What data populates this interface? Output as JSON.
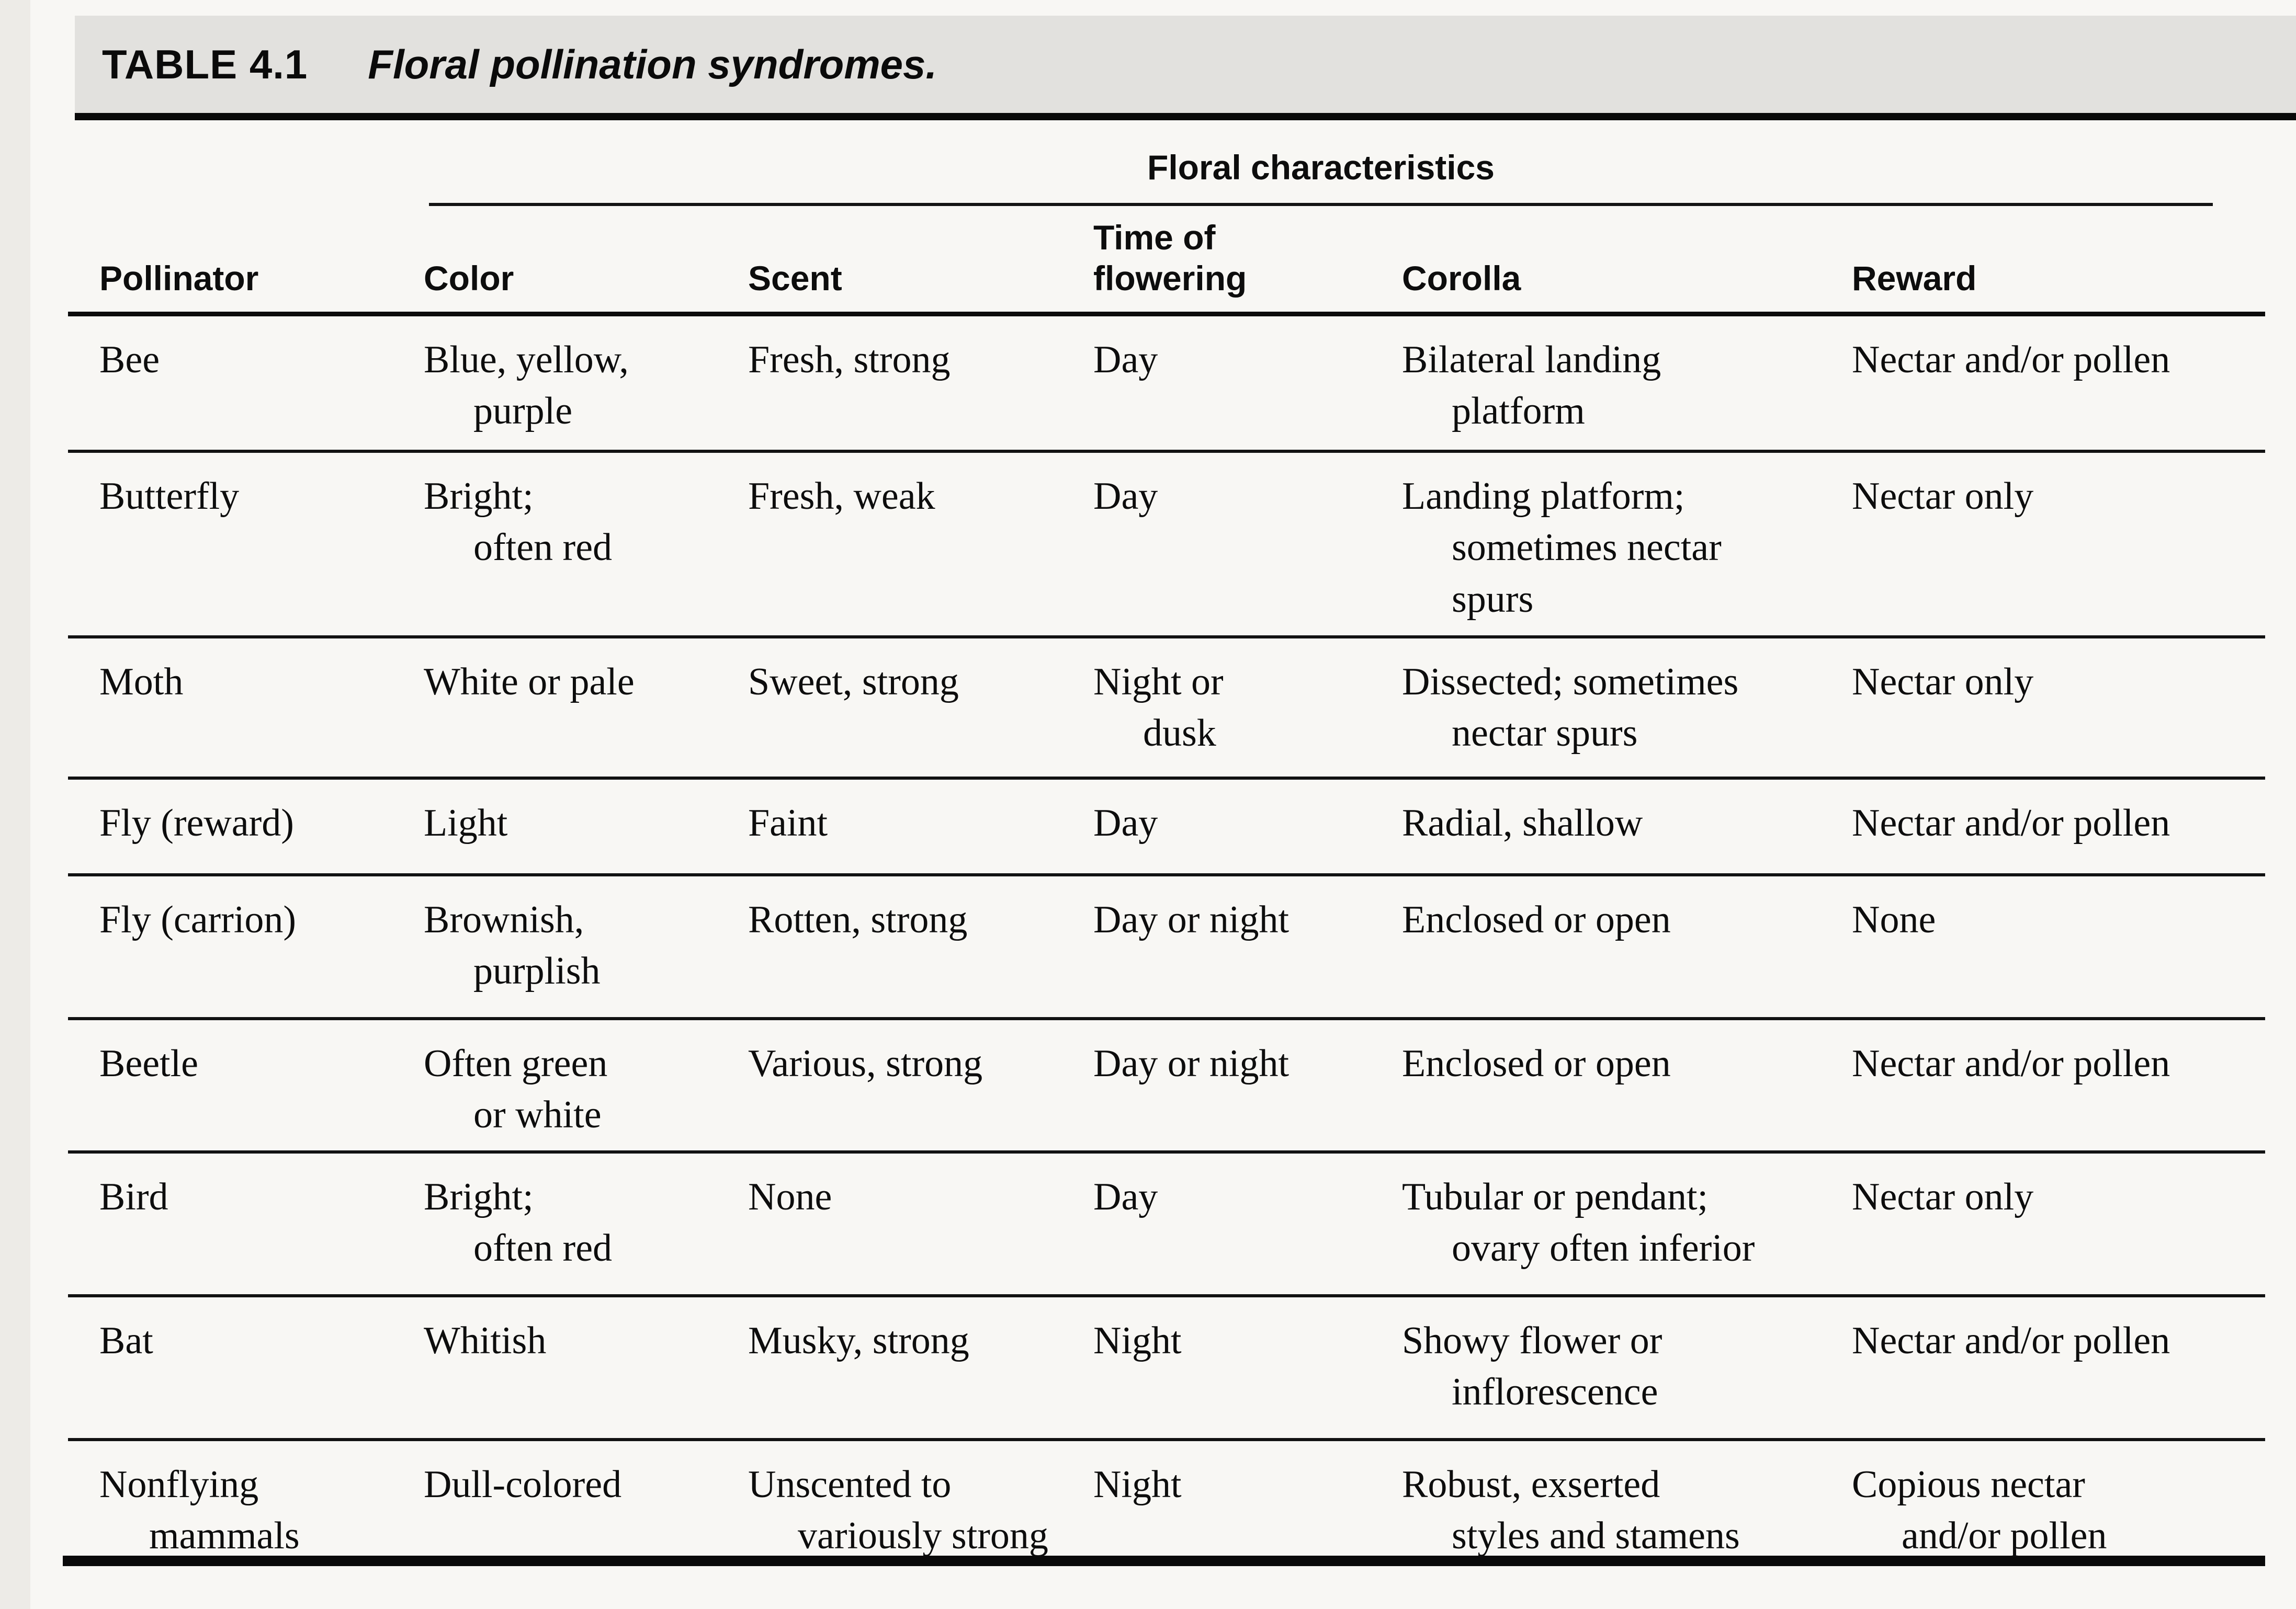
{
  "title": {
    "label": "TABLE 4.1",
    "caption": "Floral pollination syndromes."
  },
  "table": {
    "group_header": "Floral characteristics",
    "columns": {
      "pollinator": "Pollinator",
      "color": "Color",
      "scent": "Scent",
      "time": "Time of\nflowering",
      "corolla": "Corolla",
      "reward": "Reward"
    },
    "rows": [
      {
        "pollinator": "Bee",
        "color": "Blue, yellow,\npurple",
        "scent": "Fresh, strong",
        "time": "Day",
        "corolla": "Bilateral landing\nplatform",
        "reward": "Nectar and/or pollen"
      },
      {
        "pollinator": "Butterfly",
        "color": "Bright;\noften red",
        "scent": "Fresh, weak",
        "time": "Day",
        "corolla": "Landing platform;\nsometimes nectar\nspurs",
        "reward": "Nectar only"
      },
      {
        "pollinator": "Moth",
        "color": "White or pale",
        "scent": "Sweet, strong",
        "time": "Night or\ndusk",
        "corolla": "Dissected; sometimes\nnectar spurs",
        "reward": "Nectar only"
      },
      {
        "pollinator": "Fly (reward)",
        "color": "Light",
        "scent": "Faint",
        "time": "Day",
        "corolla": "Radial, shallow",
        "reward": "Nectar and/or pollen"
      },
      {
        "pollinator": "Fly (carrion)",
        "color": "Brownish,\npurplish",
        "scent": "Rotten, strong",
        "time": "Day or night",
        "corolla": "Enclosed or open",
        "reward": "None"
      },
      {
        "pollinator": "Beetle",
        "color": "Often green\nor white",
        "scent": "Various, strong",
        "time": "Day or night",
        "corolla": "Enclosed or open",
        "reward": "Nectar and/or pollen"
      },
      {
        "pollinator": "Bird",
        "color": "Bright;\noften red",
        "scent": "None",
        "time": "Day",
        "corolla": "Tubular or pendant;\novary often inferior",
        "reward": "Nectar only"
      },
      {
        "pollinator": "Bat",
        "color": "Whitish",
        "scent": "Musky, strong",
        "time": "Night",
        "corolla": "Showy flower or\ninflorescence",
        "reward": "Nectar and/or pollen"
      },
      {
        "pollinator": "Nonflying\nmammals",
        "color": "Dull-colored",
        "scent": "Unscented to\nvariously strong",
        "time": "Night",
        "corolla": "Robust, exserted\nstyles and stamens",
        "reward": "Copious nectar\nand/or pollen"
      }
    ]
  },
  "colors": {
    "ink": "#0a0a0a",
    "banner_gray": "#e2e1de",
    "paper": "#f8f7f4"
  }
}
